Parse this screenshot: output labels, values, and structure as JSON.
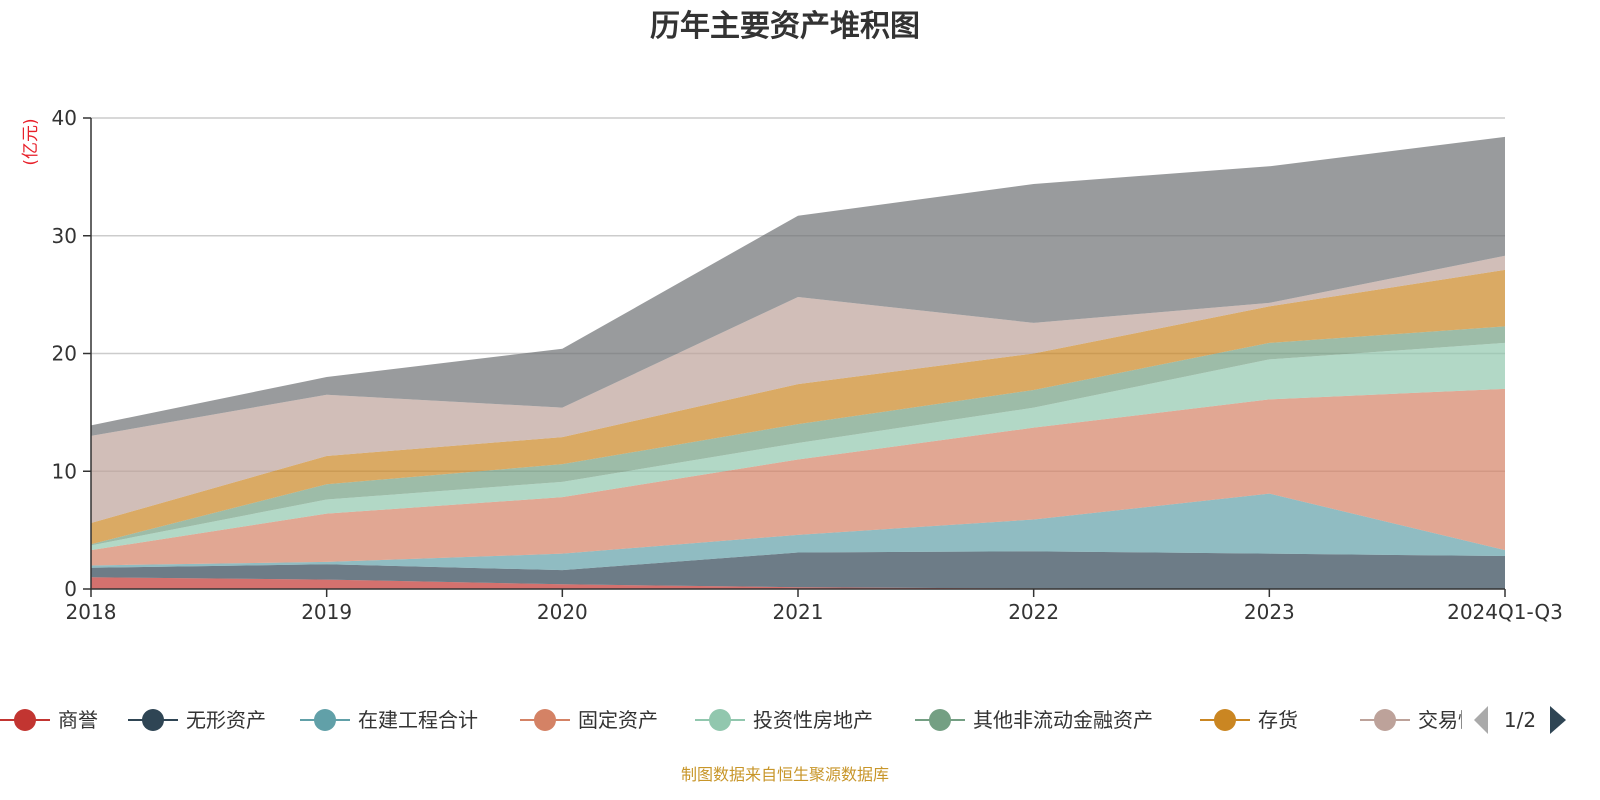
{
  "chart_data": {
    "type": "area",
    "stacked": true,
    "title": "历年主要资产堆积图",
    "ylabel": "(亿元)",
    "xlabel": "",
    "categories": [
      "2018",
      "2019",
      "2020",
      "2021",
      "2022",
      "2023",
      "2024Q1-Q3"
    ],
    "ylim": [
      0,
      40
    ],
    "yticks": [
      0,
      10,
      20,
      30,
      40
    ],
    "grid": true,
    "legend_position": "bottom",
    "legend_page": "1/2",
    "series": [
      {
        "name": "商誉",
        "color": "#c23531",
        "values": [
          1.0,
          0.8,
          0.4,
          0.15,
          0.05,
          0.0,
          0.0
        ]
      },
      {
        "name": "无形资产",
        "color": "#2f4554",
        "values": [
          0.8,
          1.3,
          1.2,
          2.95,
          3.15,
          3.0,
          2.8
        ]
      },
      {
        "name": "在建工程合计",
        "color": "#61a0a8",
        "values": [
          0.2,
          0.2,
          1.4,
          1.5,
          2.7,
          5.1,
          0.5
        ]
      },
      {
        "name": "固定资产",
        "color": "#d48265",
        "values": [
          1.3,
          4.1,
          4.8,
          6.4,
          7.8,
          8.0,
          13.7
        ]
      },
      {
        "name": "投资性房地产",
        "color": "#91c7ae",
        "values": [
          0.4,
          1.2,
          1.3,
          1.4,
          1.7,
          3.4,
          3.9
        ]
      },
      {
        "name": "其他非流动金融资产",
        "color": "#749f83",
        "values": [
          0.1,
          1.3,
          1.5,
          1.6,
          1.5,
          1.4,
          1.4
        ]
      },
      {
        "name": "存货",
        "color": "#ca8622",
        "values": [
          1.8,
          2.4,
          2.3,
          3.4,
          3.1,
          3.1,
          4.8
        ]
      },
      {
        "name": "交易性",
        "color": "#bda29a",
        "values": [
          7.4,
          5.2,
          2.5,
          7.4,
          2.6,
          0.3,
          1.2
        ]
      },
      {
        "color": "#6e7074",
        "values": [
          0.9,
          1.5,
          5.0,
          6.9,
          11.8,
          11.6,
          10.1
        ]
      }
    ]
  },
  "footer": "制图数据来自恒生聚源数据库"
}
